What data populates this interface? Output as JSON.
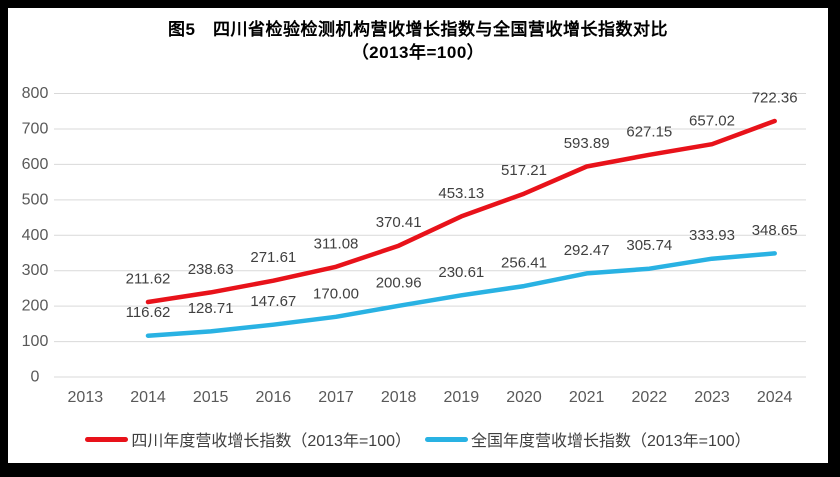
{
  "figure": {
    "title_line1": "图5　四川省检验检测机构营收增长指数与全国营收增长指数对比",
    "title_line2": "（2013年=100）"
  },
  "colors": {
    "sichuan_red": "#e8121a",
    "national_blue": "#29b2e3",
    "gridline": "#d9d9d9",
    "tick_text": "#595959",
    "data_label_text": "#404040",
    "title_text": "#000000",
    "frame": "#000000"
  },
  "chart_data": {
    "type": "line",
    "title": "图5 四川省检验检测机构营收增长指数与全国营收增长指数对比（2013年=100）",
    "categories": [
      "2013",
      "2014",
      "2015",
      "2016",
      "2017",
      "2018",
      "2019",
      "2020",
      "2021",
      "2022",
      "2023",
      "2024"
    ],
    "series": [
      {
        "name": "四川年度营收增长指数（2013年=100）",
        "color": "#e8121a",
        "start_year": "2014",
        "values": [
          211.62,
          238.63,
          271.61,
          311.08,
          370.41,
          453.13,
          517.21,
          593.89,
          627.15,
          657.02,
          722.36
        ]
      },
      {
        "name": "全国年度营收增长指数（2013年=100）",
        "color": "#29b2e3",
        "start_year": "2014",
        "values": [
          116.62,
          128.71,
          147.67,
          170.0,
          200.96,
          230.61,
          256.41,
          292.47,
          305.74,
          333.93,
          348.65
        ]
      }
    ],
    "ylim": [
      0,
      800
    ],
    "y_ticks": [
      0,
      100,
      200,
      300,
      400,
      500,
      600,
      700,
      800
    ],
    "grid": true,
    "data_labels_shown": true,
    "data_label_decimals": 2,
    "legend_position": "bottom"
  }
}
